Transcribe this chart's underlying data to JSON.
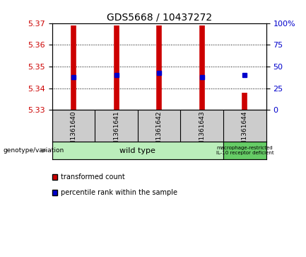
{
  "title": "GDS5668 / 10437272",
  "samples": [
    "GSM1361640",
    "GSM1361641",
    "GSM1361642",
    "GSM1361643",
    "GSM1361644"
  ],
  "bar_bottoms": [
    5.33,
    5.33,
    5.33,
    5.33,
    5.33
  ],
  "bar_tops": [
    5.369,
    5.369,
    5.369,
    5.369,
    5.338
  ],
  "percentile_values": [
    5.345,
    5.346,
    5.347,
    5.345,
    5.346
  ],
  "ylim_left": [
    5.33,
    5.37
  ],
  "ylim_right": [
    0,
    100
  ],
  "yticks_left": [
    5.33,
    5.34,
    5.35,
    5.36,
    5.37
  ],
  "yticks_right": [
    0,
    25,
    50,
    75,
    100
  ],
  "bar_color": "#cc0000",
  "percentile_color": "#0000cc",
  "bg_color": "#ffffff",
  "left_label_color": "#cc0000",
  "right_label_color": "#0000cc",
  "genotype_labels": [
    "wild type",
    "macrophage-restricted\nIL-10 receptor deficient"
  ],
  "genotype_groups": [
    [
      0,
      1,
      2,
      3
    ],
    [
      4
    ]
  ],
  "genotype_bg_light": "#bbeebb",
  "genotype_bg_dark": "#66cc66",
  "sample_bg": "#cccccc",
  "legend_items": [
    {
      "color": "#cc0000",
      "label": "transformed count"
    },
    {
      "color": "#0000cc",
      "label": "percentile rank within the sample"
    }
  ]
}
